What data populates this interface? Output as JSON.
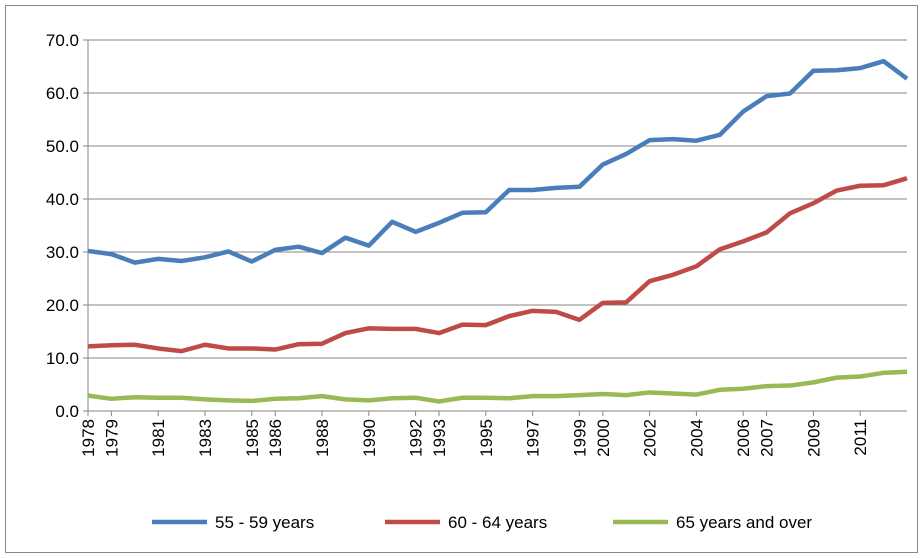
{
  "chart_data": {
    "type": "line",
    "x": [
      1978,
      1979,
      1980,
      1981,
      1982,
      1983,
      1984,
      1985,
      1986,
      1987,
      1988,
      1989,
      1990,
      1991,
      1992,
      1993,
      1994,
      1995,
      1996,
      1997,
      1998,
      1999,
      2000,
      2001,
      2002,
      2003,
      2004,
      2005,
      2006,
      2007,
      2008,
      2009,
      2010,
      2011,
      2012,
      2013
    ],
    "series": [
      {
        "name": "55 - 59 years",
        "color": "#4a7ebb",
        "values": [
          30.2,
          29.6,
          28.0,
          28.7,
          28.3,
          29.0,
          30.1,
          28.2,
          30.4,
          31.0,
          29.8,
          32.7,
          31.2,
          35.7,
          33.8,
          35.5,
          37.4,
          37.5,
          41.7,
          41.7,
          42.1,
          42.3,
          46.5,
          48.5,
          51.1,
          51.3,
          51.0,
          52.1,
          56.5,
          59.4,
          59.9,
          64.2,
          64.3,
          64.7,
          66.0,
          62.7
        ]
      },
      {
        "name": "60 - 64 years",
        "color": "#be4b48",
        "values": [
          12.2,
          12.4,
          12.5,
          11.8,
          11.3,
          12.5,
          11.8,
          11.8,
          11.6,
          12.6,
          12.7,
          14.7,
          15.6,
          15.5,
          15.5,
          14.7,
          16.3,
          16.2,
          17.9,
          18.9,
          18.7,
          17.2,
          20.4,
          20.5,
          24.5,
          25.7,
          27.3,
          30.5,
          32.0,
          33.7,
          37.3,
          39.2,
          41.6,
          42.5,
          42.6,
          43.9
        ]
      },
      {
        "name": "65 years and over",
        "color": "#98b954",
        "values": [
          2.9,
          2.3,
          2.6,
          2.5,
          2.5,
          2.2,
          2.0,
          1.9,
          2.3,
          2.4,
          2.8,
          2.2,
          2.0,
          2.4,
          2.5,
          1.8,
          2.5,
          2.5,
          2.4,
          2.8,
          2.8,
          3.0,
          3.2,
          3.0,
          3.5,
          3.3,
          3.1,
          4.0,
          4.2,
          4.7,
          4.8,
          5.4,
          6.3,
          6.5,
          7.2,
          7.4
        ]
      }
    ],
    "xlim": [
      1978,
      2013
    ],
    "xticks": [
      1978,
      1979,
      1981,
      1983,
      1985,
      1986,
      1988,
      1990,
      1992,
      1993,
      1995,
      1997,
      1999,
      2000,
      2002,
      2004,
      2006,
      2007,
      2009,
      2011
    ],
    "ylim": [
      0,
      70
    ],
    "yticks": [
      {
        "value": 0,
        "label": "0.0"
      },
      {
        "value": 10,
        "label": "10.0"
      },
      {
        "value": 20,
        "label": "20.0"
      },
      {
        "value": 30,
        "label": "30.0"
      },
      {
        "value": 40,
        "label": "40.0"
      },
      {
        "value": 50,
        "label": "50.0"
      },
      {
        "value": 60,
        "label": "60.0"
      },
      {
        "value": 70,
        "label": "70.0"
      }
    ],
    "grid": true,
    "legend": "bottom"
  }
}
